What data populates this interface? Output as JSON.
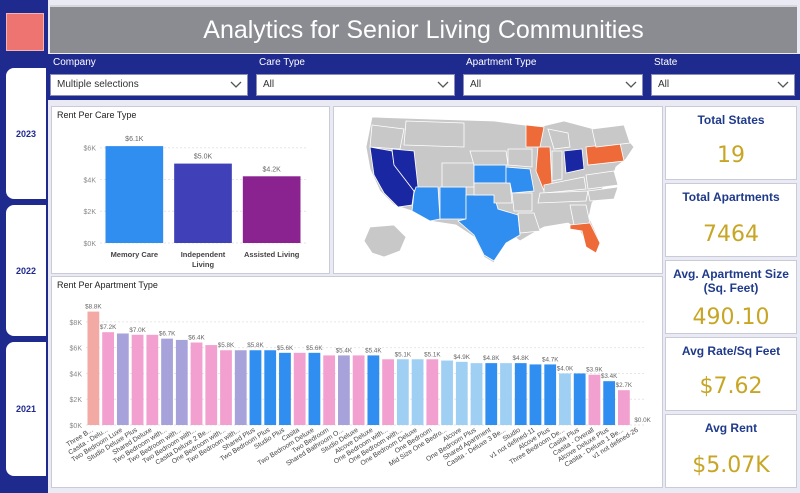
{
  "header": {
    "title": "Analytics for Senior Living Communities"
  },
  "years": [
    "2023",
    "2022",
    "2021"
  ],
  "filters": [
    {
      "label": "Company",
      "value": "Multiple selections"
    },
    {
      "label": "Care Type",
      "value": "All"
    },
    {
      "label": "Apartment Type",
      "value": "All"
    },
    {
      "label": "State",
      "value": "All"
    }
  ],
  "kpis": [
    {
      "label": "Total States",
      "value": "19"
    },
    {
      "label": "Total Apartments",
      "value": "7464"
    },
    {
      "label": "Avg. Apartment Size (Sq. Feet)",
      "value": "490.10"
    },
    {
      "label": "Avg Rate/Sq Feet",
      "value": "$7.62"
    },
    {
      "label": "Avg Rent",
      "value": "$5.07K"
    }
  ],
  "map": {
    "title": ""
  },
  "colors": {
    "accent": "#1f2a8f",
    "kpi_value": "#c8a625",
    "title_bar": "#8a8c92"
  },
  "chart_data": [
    {
      "type": "bar",
      "title": "Rent Per Care Type",
      "categories": [
        "Memory Care",
        "Independent Living",
        "Assisted Living"
      ],
      "category_lines": [
        [
          "Memory Care"
        ],
        [
          "Independent",
          "Living"
        ],
        [
          "Assisted Living"
        ]
      ],
      "values": [
        6100,
        5000,
        4200
      ],
      "data_labels": [
        "$6.1K",
        "$5.0K",
        "$4.2K"
      ],
      "colors": [
        "#2f8ef0",
        "#4040b8",
        "#8a2390"
      ],
      "yticks": [
        0,
        2000,
        4000,
        6000
      ],
      "ytick_labels": [
        "$0K",
        "$2K",
        "$4K",
        "$6K"
      ],
      "ylim": [
        0,
        6800
      ]
    },
    {
      "type": "bar",
      "title": "Rent Per Apartment Type",
      "categories": [
        "Three B...",
        "Casita - Delu...",
        "Two Bedroom Luxe",
        "Studio Deluxe Plus",
        "Shared Deluxe",
        "Two Bedroom with...",
        "Two Bedroom with...",
        "Two Bedroom with...",
        "Casita Deluxe 2 Be...",
        "One Bedroom with...",
        "Two Bedroom with...",
        "Shared Plus",
        "Two Bedroom Plus",
        "Studio Plus",
        "Casita",
        "Two Bedroom Deluxe",
        "Two Bedroom",
        "Shared Bathroom O...",
        "Studio Deluxe",
        "Alcove Deluxe",
        "One Bedroom with...",
        "One Bedroom with...",
        "One Bedroom Deluxe",
        "One Bedroom",
        "Mid Size One Bedro...",
        "Alcove",
        "One Bedroom Plus",
        "Shared Apartment",
        "Casita - Deluxe 3 Be...",
        "Studio",
        "v1 not defined-11",
        "Alcove Plus",
        "Three Bedroom De...",
        "Casita Plus",
        "Casita - Overall",
        "Alcove Deluxe Plus",
        "Casita - Deluxe 1 Be...",
        "v1 not defined-26"
      ],
      "values": [
        8800,
        7200,
        7100,
        7000,
        7000,
        6700,
        6600,
        6400,
        6200,
        5800,
        5800,
        5800,
        5800,
        5600,
        5600,
        5600,
        5400,
        5400,
        5400,
        5400,
        5100,
        5100,
        5100,
        5100,
        5000,
        4900,
        4800,
        4800,
        4800,
        4800,
        4700,
        4700,
        4000,
        4000,
        3900,
        3400,
        2700,
        0
      ],
      "data_labels": [
        "$8.8K",
        "$7.2K",
        "",
        "$7.0K",
        "",
        "$6.7K",
        "",
        "$6.4K",
        "",
        "$5.8K",
        "",
        "$5.8K",
        "",
        "$5.6K",
        "",
        "$5.6K",
        "",
        "$5.4K",
        "",
        "$5.4K",
        "",
        "$5.1K",
        "",
        "$5.1K",
        "",
        "$4.9K",
        "",
        "$4.8K",
        "",
        "$4.8K",
        "",
        "$4.7K",
        "$4.0K",
        "",
        "$3.9K",
        "$3.4K",
        "$2.7K",
        "$0.0K"
      ],
      "colors": [
        "#f4aaa4",
        "#f2a0d0",
        "#a7a3da",
        "#f2a0d0",
        "#f2a0d0",
        "#a7a3da",
        "#a7a3da",
        "#f2a0d0",
        "#f2a0d0",
        "#f2a0d0",
        "#a7a3da",
        "#2f8ef0",
        "#2f8ef0",
        "#2f8ef0",
        "#f2a0d0",
        "#2f8ef0",
        "#f2a0d0",
        "#a7a3da",
        "#f2a0d0",
        "#2f8ef0",
        "#f2a0d0",
        "#9fd0f4",
        "#9fd0f4",
        "#f2a0d0",
        "#9fd0f4",
        "#9fd0f4",
        "#9fd0f4",
        "#2f8ef0",
        "#9fd0f4",
        "#2f8ef0",
        "#2f8ef0",
        "#2f8ef0",
        "#9fd0f4",
        "#2f8ef0",
        "#f2a0d0",
        "#2f8ef0",
        "#f2a0d0",
        "#f2a0d0"
      ],
      "yticks": [
        0,
        2000,
        4000,
        6000,
        8000
      ],
      "ytick_labels": [
        "$0K",
        "$2K",
        "$4K",
        "$6K",
        "$8K"
      ],
      "ylim": [
        0,
        9000
      ]
    }
  ]
}
